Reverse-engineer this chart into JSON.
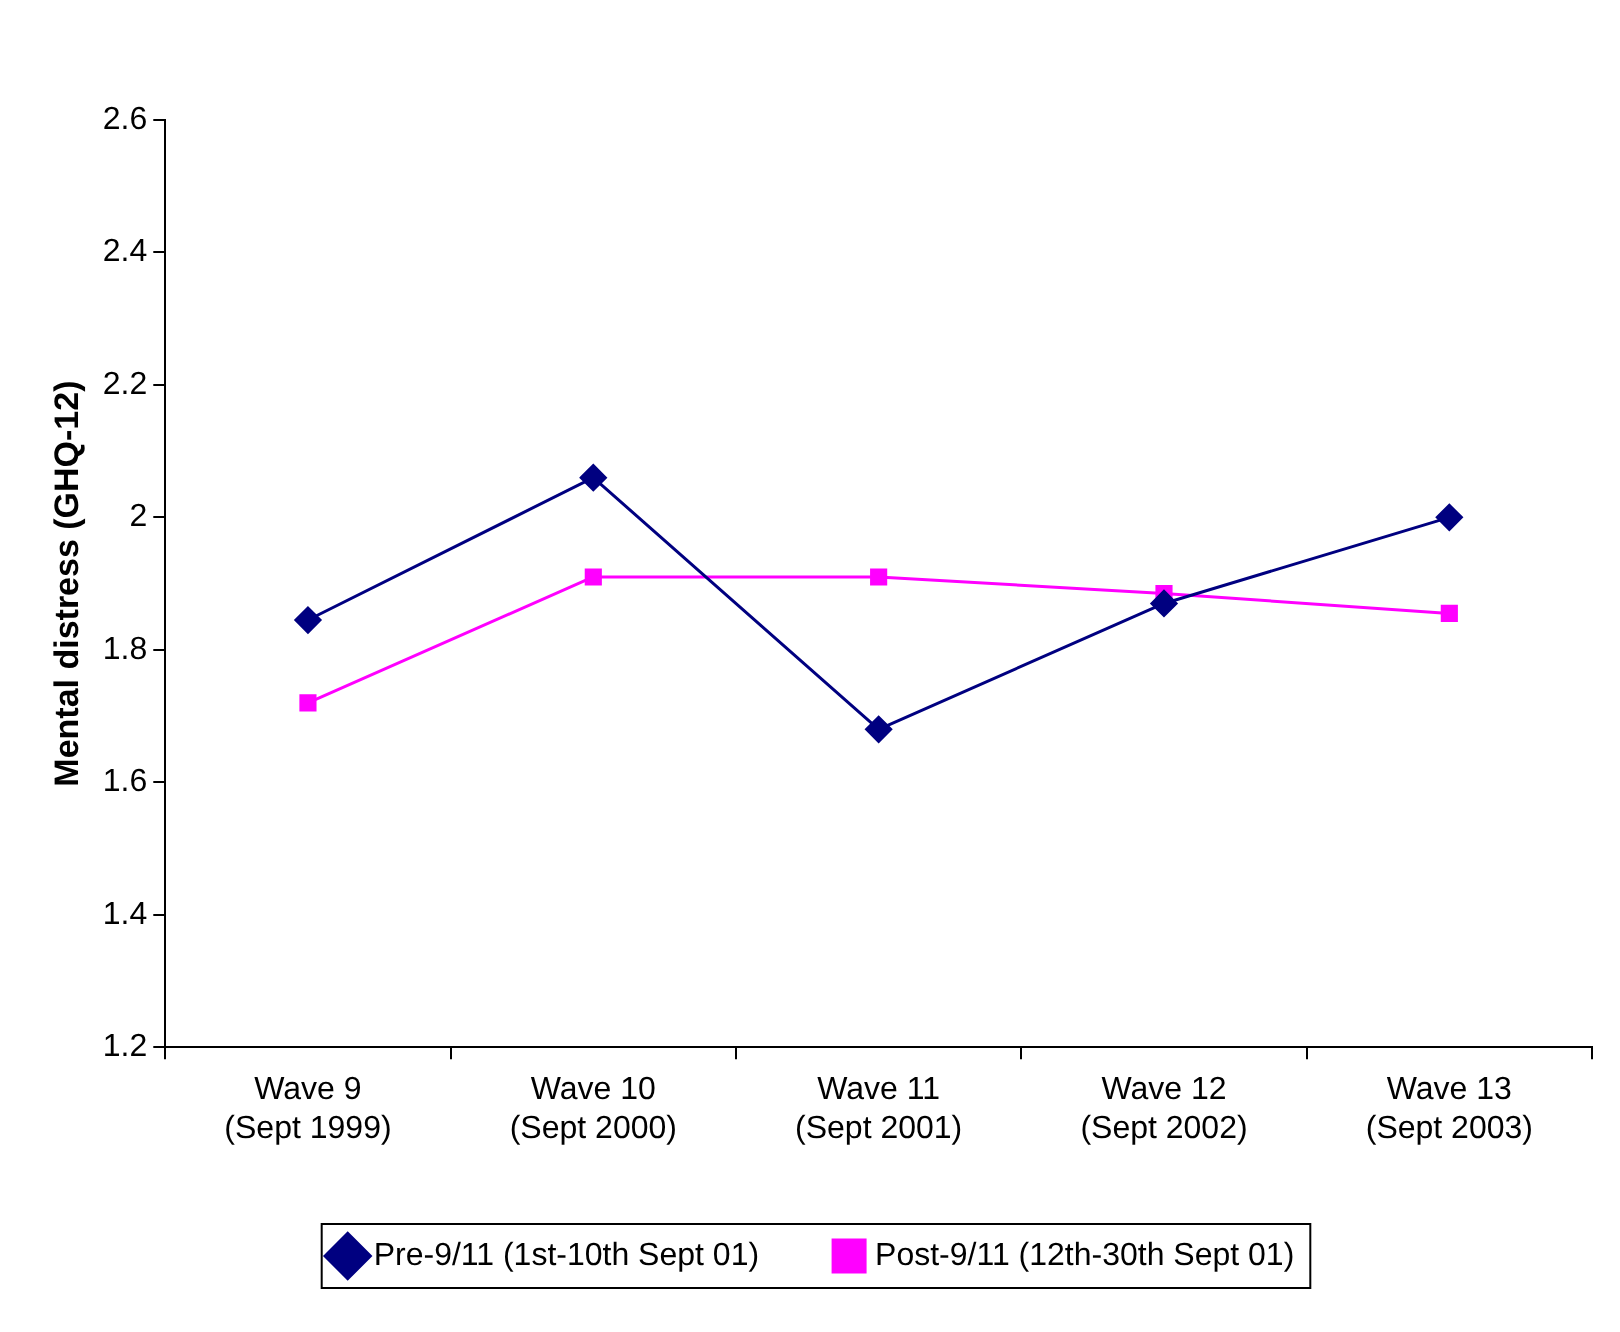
{
  "chart_data": {
    "type": "line",
    "ylabel": "Mental distress (GHQ-12)",
    "categories": [
      "Wave 9\n(Sept 1999)",
      "Wave 10\n(Sept 2000)",
      "Wave 11\n(Sept 2001)",
      "Wave 12\n(Sept 2002)",
      "Wave 13\n(Sept 2003)"
    ],
    "series": [
      {
        "name": "Pre-9/11 (1st-10th Sept 01)",
        "color": "#000080",
        "marker": "diamond",
        "values": [
          1.845,
          2.06,
          1.68,
          1.87,
          2.0
        ]
      },
      {
        "name": "Post-9/11 (12th-30th Sept 01)",
        "color": "#ff00ff",
        "marker": "square",
        "values": [
          1.72,
          1.91,
          1.91,
          1.885,
          1.855
        ]
      }
    ],
    "ylim": [
      1.2,
      2.6
    ],
    "yticks": [
      1.2,
      1.4,
      1.6,
      1.8,
      2,
      2.2,
      2.4,
      2.6
    ],
    "grid": false,
    "legend": "bottom"
  }
}
